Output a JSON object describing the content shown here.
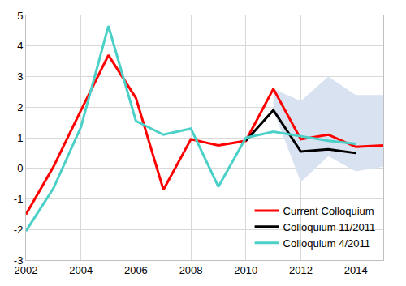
{
  "chart_data": {
    "type": "line",
    "xlim": [
      2002,
      2015
    ],
    "xticks": [
      2002,
      2004,
      2006,
      2008,
      2010,
      2012,
      2014
    ],
    "ylim": [
      -3,
      5
    ],
    "yticks": [
      -3,
      -2,
      -1,
      0,
      1,
      2,
      3,
      4,
      5
    ],
    "grid": true,
    "legend": "lower right",
    "series": [
      {
        "name": "Current Colloquium",
        "color": "#ff0000",
        "x": [
          2002,
          2003,
          2004,
          2005,
          2006,
          2007,
          2008,
          2009,
          2010,
          2011,
          2012,
          2013,
          2014,
          2015
        ],
        "values": [
          -1.5,
          0.05,
          1.9,
          3.7,
          2.3,
          -0.7,
          0.95,
          0.75,
          0.9,
          2.6,
          0.95,
          1.1,
          0.7,
          0.75
        ]
      },
      {
        "name": "Colloquium 11/2011",
        "color": "#000000",
        "x": [
          2010,
          2011,
          2012,
          2013,
          2014
        ],
        "values": [
          0.9,
          1.9,
          0.55,
          0.62,
          0.5
        ]
      },
      {
        "name": "Colloquium 4/2011",
        "color": "#4bd0c8",
        "x": [
          2002,
          2003,
          2004,
          2005,
          2006,
          2007,
          2008,
          2009,
          2010,
          2011,
          2012,
          2013,
          2014
        ],
        "values": [
          -2.05,
          -0.65,
          1.35,
          4.65,
          1.55,
          1.1,
          1.3,
          -0.6,
          1.0,
          1.2,
          1.05,
          0.9,
          0.8
        ]
      }
    ],
    "band": {
      "color": "#d9e2f0",
      "x": [
        2011,
        2012,
        2013,
        2014,
        2015
      ],
      "lower": [
        1.9,
        -0.45,
        0.4,
        -0.1,
        0.05
      ],
      "upper": [
        2.6,
        2.2,
        3.0,
        2.4,
        2.4
      ]
    }
  }
}
